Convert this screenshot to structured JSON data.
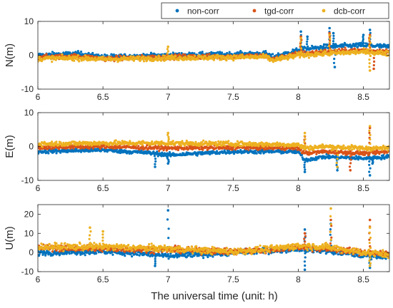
{
  "chart_data": {
    "type": "scatter",
    "xlabel": "The universal time (unit: h)",
    "xlim": [
      6,
      8.7
    ],
    "x_ticks": [
      "6",
      "6.5",
      "7",
      "7.5",
      "8",
      "8.5"
    ],
    "x_tick_values": [
      6,
      6.5,
      7,
      7.5,
      8,
      8.5
    ],
    "legend": {
      "placement": "top-right",
      "entries": [
        {
          "label": "non-corr",
          "color": "#0072BD"
        },
        {
          "label": "tgd-corr",
          "color": "#D95319"
        },
        {
          "label": "dcb-corr",
          "color": "#EDB120"
        }
      ]
    },
    "panels": [
      {
        "ylabel": "N(m)",
        "ylim": [
          -10,
          10
        ],
        "y_ticks": [
          "10",
          "0",
          "-10"
        ],
        "y_tick_values": [
          10,
          0,
          -10
        ],
        "series": [
          {
            "name": "non-corr",
            "color": "#0072BD",
            "trend": [
              [
                6.0,
                0.0
              ],
              [
                6.3,
                0.5
              ],
              [
                6.5,
                -0.5
              ],
              [
                7.0,
                0.0
              ],
              [
                7.5,
                0.3
              ],
              [
                7.75,
                0.5
              ],
              [
                7.8,
                -0.5
              ],
              [
                8.0,
                1.5
              ],
              [
                8.2,
                2.5
              ],
              [
                8.5,
                3.0
              ],
              [
                8.7,
                2.5
              ]
            ],
            "spread": 1.2,
            "spikes": [
              [
                8.02,
                7.0
              ],
              [
                8.07,
                5.5
              ],
              [
                8.24,
                8.0
              ],
              [
                8.27,
                6.5
              ],
              [
                8.5,
                6.0
              ],
              [
                8.55,
                7.5
              ],
              [
                8.28,
                -3.5
              ]
            ]
          },
          {
            "name": "tgd-corr",
            "color": "#D95319",
            "trend": [
              [
                6.0,
                -0.6
              ],
              [
                6.3,
                -0.3
              ],
              [
                6.5,
                -1.0
              ],
              [
                7.0,
                -0.5
              ],
              [
                7.5,
                -0.3
              ],
              [
                7.75,
                -0.2
              ],
              [
                7.8,
                -1.2
              ],
              [
                8.0,
                0.5
              ],
              [
                8.2,
                1.0
              ],
              [
                8.5,
                1.5
              ],
              [
                8.7,
                1.0
              ]
            ],
            "spread": 1.2,
            "spikes": [
              [
                8.02,
                5.5
              ],
              [
                8.24,
                6.5
              ],
              [
                8.55,
                6.0
              ],
              [
                8.58,
                -4.0
              ]
            ]
          },
          {
            "name": "dcb-corr",
            "color": "#EDB120",
            "trend": [
              [
                6.0,
                -1.0
              ],
              [
                6.3,
                -0.8
              ],
              [
                6.5,
                -1.2
              ],
              [
                7.0,
                -0.8
              ],
              [
                7.5,
                -0.6
              ],
              [
                7.75,
                -0.5
              ],
              [
                7.8,
                -1.5
              ],
              [
                8.0,
                0.0
              ],
              [
                8.2,
                0.5
              ],
              [
                8.5,
                1.0
              ],
              [
                8.7,
                0.5
              ]
            ],
            "spread": 1.3,
            "spikes": [
              [
                7.0,
                2.5
              ],
              [
                8.02,
                5.0
              ],
              [
                8.24,
                6.0
              ],
              [
                8.55,
                5.5
              ],
              [
                8.55,
                -4.5
              ]
            ]
          }
        ]
      },
      {
        "ylabel": "E(m)",
        "ylim": [
          -10,
          10
        ],
        "y_ticks": [
          "10",
          "0",
          "-10"
        ],
        "y_tick_values": [
          10,
          0,
          -10
        ],
        "series": [
          {
            "name": "non-corr",
            "color": "#0072BD",
            "trend": [
              [
                6.0,
                -1.5
              ],
              [
                6.5,
                -1.0
              ],
              [
                6.9,
                -2.0
              ],
              [
                7.0,
                -2.5
              ],
              [
                7.5,
                -1.5
              ],
              [
                8.0,
                -1.5
              ],
              [
                8.05,
                -4.0
              ],
              [
                8.2,
                -3.0
              ],
              [
                8.5,
                -3.5
              ],
              [
                8.7,
                -3.0
              ]
            ],
            "spread": 1.0,
            "spikes": [
              [
                6.9,
                -6.0
              ],
              [
                7.0,
                -5.0
              ],
              [
                8.05,
                -7.5
              ],
              [
                8.3,
                -7.0
              ],
              [
                8.55,
                -8.5
              ],
              [
                8.57,
                -5.0
              ]
            ]
          },
          {
            "name": "tgd-corr",
            "color": "#D95319",
            "trend": [
              [
                6.0,
                -0.3
              ],
              [
                6.5,
                0.0
              ],
              [
                7.0,
                -0.5
              ],
              [
                7.5,
                -0.3
              ],
              [
                8.0,
                -0.5
              ],
              [
                8.05,
                -2.0
              ],
              [
                8.2,
                -1.5
              ],
              [
                8.5,
                -2.0
              ],
              [
                8.7,
                -1.5
              ]
            ],
            "spread": 1.0,
            "spikes": [
              [
                8.05,
                3.0
              ],
              [
                8.55,
                5.5
              ],
              [
                8.4,
                -7.0
              ]
            ]
          },
          {
            "name": "dcb-corr",
            "color": "#EDB120",
            "trend": [
              [
                6.0,
                0.8
              ],
              [
                6.5,
                1.0
              ],
              [
                7.0,
                1.0
              ],
              [
                7.5,
                0.8
              ],
              [
                8.0,
                0.5
              ],
              [
                8.05,
                -0.5
              ],
              [
                8.2,
                0.0
              ],
              [
                8.5,
                -0.5
              ],
              [
                8.7,
                -0.5
              ]
            ],
            "spread": 1.2,
            "spikes": [
              [
                7.0,
                4.0
              ],
              [
                8.05,
                4.0
              ],
              [
                8.55,
                6.0
              ],
              [
                8.3,
                -6.0
              ]
            ]
          }
        ]
      },
      {
        "ylabel": "U(m)",
        "ylim": [
          -10,
          25
        ],
        "y_ticks": [
          "20",
          "10",
          "0",
          "-10"
        ],
        "y_tick_values": [
          20,
          10,
          0,
          -10
        ],
        "series": [
          {
            "name": "non-corr",
            "color": "#0072BD",
            "trend": [
              [
                6.0,
                0.0
              ],
              [
                6.5,
                0.5
              ],
              [
                6.9,
                -1.0
              ],
              [
                7.0,
                -2.0
              ],
              [
                7.5,
                0.0
              ],
              [
                7.8,
                1.0
              ],
              [
                8.0,
                2.0
              ],
              [
                8.2,
                1.0
              ],
              [
                8.5,
                -1.5
              ],
              [
                8.7,
                -2.0
              ]
            ],
            "spread": 2.5,
            "spikes": [
              [
                7.0,
                22.0
              ],
              [
                8.05,
                12.0
              ],
              [
                8.25,
                15.0
              ],
              [
                6.9,
                -7.0
              ],
              [
                8.05,
                -9.0
              ],
              [
                8.55,
                -8.0
              ]
            ]
          },
          {
            "name": "tgd-corr",
            "color": "#D95319",
            "trend": [
              [
                6.0,
                2.5
              ],
              [
                6.5,
                2.0
              ],
              [
                7.0,
                1.5
              ],
              [
                7.5,
                0.5
              ],
              [
                7.8,
                1.5
              ],
              [
                8.0,
                3.0
              ],
              [
                8.2,
                2.0
              ],
              [
                8.5,
                0.0
              ],
              [
                8.7,
                -1.0
              ]
            ],
            "spread": 2.8,
            "spikes": [
              [
                8.25,
                17.0
              ],
              [
                8.55,
                17.0
              ],
              [
                8.05,
                10.0
              ]
            ]
          },
          {
            "name": "dcb-corr",
            "color": "#EDB120",
            "trend": [
              [
                6.0,
                3.0
              ],
              [
                6.5,
                3.0
              ],
              [
                7.0,
                2.0
              ],
              [
                7.5,
                0.5
              ],
              [
                7.8,
                2.0
              ],
              [
                8.0,
                3.5
              ],
              [
                8.2,
                3.0
              ],
              [
                8.5,
                0.0
              ],
              [
                8.7,
                -1.0
              ]
            ],
            "spread": 3.0,
            "spikes": [
              [
                6.4,
                13.0
              ],
              [
                6.5,
                11.0
              ],
              [
                8.25,
                23.0
              ],
              [
                8.55,
                13.0
              ],
              [
                8.55,
                -7.0
              ]
            ]
          }
        ]
      }
    ]
  }
}
